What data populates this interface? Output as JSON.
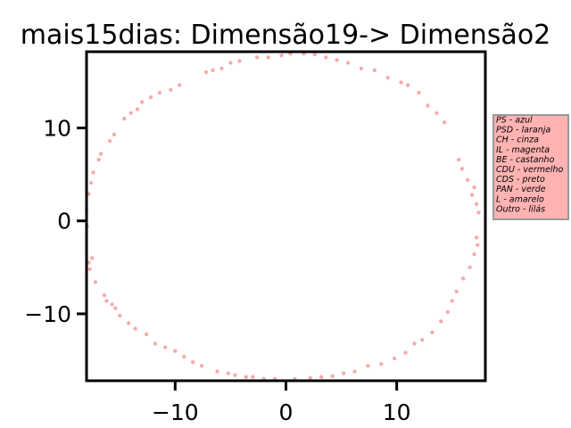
{
  "chart_data": {
    "type": "scatter",
    "title": "mais15dias: Dimensão19-> Dimensão2",
    "xlabel": "",
    "ylabel": "",
    "xlim": [
      -18,
      18
    ],
    "ylim": [
      -17.2,
      18.2
    ],
    "x_ticks": [
      -10,
      0,
      10
    ],
    "y_ticks": [
      -10,
      0,
      10
    ],
    "x_tick_labels": [
      "−10",
      "0",
      "10"
    ],
    "y_tick_labels": [
      "−10",
      "0",
      "10"
    ],
    "grid": false,
    "point_color": "#f08080",
    "legend_placement": "right-outside",
    "legend_bg": "#ffb3b3",
    "legend_entries": [
      "PS - azul",
      "PSD - laranja",
      "CH - cinza",
      "IL - magenta",
      "BE - castanho",
      "CDU - vermelho",
      "CDS - preto",
      "PAN - verde",
      "L - amarelo",
      "Outro - lilás"
    ],
    "series": [
      {
        "points": [
          [
            -18,
            1.2
          ],
          [
            -17.95,
            -0.6
          ],
          [
            -17.8,
            2.9
          ],
          [
            -17.8,
            -4.5
          ],
          [
            -17.7,
            -5.2
          ],
          [
            -17.6,
            4.1
          ],
          [
            -17.5,
            -4.0
          ],
          [
            -17.4,
            5.2
          ],
          [
            -17.2,
            -6.6
          ],
          [
            -16.9,
            6.6
          ],
          [
            -16.7,
            7.2
          ],
          [
            -16.4,
            -8.0
          ],
          [
            -16.2,
            -8.6
          ],
          [
            -15.9,
            8.6
          ],
          [
            -15.7,
            -9.0
          ],
          [
            -15.5,
            9.3
          ],
          [
            -15.4,
            -9.4
          ],
          [
            -15.0,
            -10.2
          ],
          [
            -14.6,
            11.0
          ],
          [
            -14.2,
            -11.0
          ],
          [
            -14.0,
            11.6
          ],
          [
            -13.6,
            -11.6
          ],
          [
            -13.4,
            12.0
          ],
          [
            -13.0,
            12.8
          ],
          [
            -12.6,
            -12.2
          ],
          [
            -12.2,
            13.3
          ],
          [
            -11.8,
            -13.2
          ],
          [
            -11.4,
            13.8
          ],
          [
            -10.9,
            -13.6
          ],
          [
            -10.4,
            14.1
          ],
          [
            -10.0,
            -14.0
          ],
          [
            -9.6,
            14.6
          ],
          [
            -9.2,
            -14.6
          ],
          [
            -8.4,
            -15.2
          ],
          [
            -7.6,
            -15.6
          ],
          [
            -7.2,
            16.0
          ],
          [
            -6.6,
            16.2
          ],
          [
            -6.2,
            -16.2
          ],
          [
            -5.8,
            16.4
          ],
          [
            -5.2,
            -16.4
          ],
          [
            -5.0,
            17.0
          ],
          [
            -4.6,
            -16.6
          ],
          [
            -4.2,
            17.2
          ],
          [
            -3.6,
            -16.8
          ],
          [
            -3.0,
            -16.8
          ],
          [
            -2.6,
            17.6
          ],
          [
            -2.0,
            -17.0
          ],
          [
            -1.6,
            17.6
          ],
          [
            -1.0,
            -17.0
          ],
          [
            -0.4,
            17.8
          ],
          [
            0.4,
            18.0
          ],
          [
            0.8,
            -17.0
          ],
          [
            1.6,
            18.0
          ],
          [
            2.2,
            -16.9
          ],
          [
            2.6,
            17.9
          ],
          [
            3.2,
            -16.8
          ],
          [
            3.6,
            17.6
          ],
          [
            4.2,
            -16.7
          ],
          [
            4.6,
            17.3
          ],
          [
            5.2,
            -16.4
          ],
          [
            5.6,
            17.0
          ],
          [
            6.2,
            -16.2
          ],
          [
            6.8,
            16.4
          ],
          [
            7.4,
            -15.6
          ],
          [
            8.0,
            16.2
          ],
          [
            8.6,
            -15.4
          ],
          [
            9.2,
            15.4
          ],
          [
            9.8,
            -14.8
          ],
          [
            10.4,
            14.9
          ],
          [
            10.8,
            -14.2
          ],
          [
            11.0,
            14.6
          ],
          [
            11.6,
            -13.2
          ],
          [
            12.0,
            13.8
          ],
          [
            12.3,
            -12.8
          ],
          [
            12.8,
            12.4
          ],
          [
            13.2,
            -12.0
          ],
          [
            13.6,
            11.6
          ],
          [
            14.0,
            -10.8
          ],
          [
            14.3,
            10.6
          ],
          [
            14.6,
            -9.8
          ],
          [
            15.0,
            -8.6
          ],
          [
            15.4,
            -7.6
          ],
          [
            15.6,
            6.6
          ],
          [
            15.9,
            5.6
          ],
          [
            16.0,
            -6.2
          ],
          [
            16.4,
            4.4
          ],
          [
            16.6,
            -5.0
          ],
          [
            16.8,
            2.8
          ],
          [
            17.0,
            -3.6
          ],
          [
            17.2,
            1.8
          ],
          [
            17.3,
            -2.6
          ],
          [
            17.4,
            0.9
          ],
          [
            17.2,
            -1.8
          ],
          [
            17.0,
            3.6
          ]
        ]
      }
    ]
  }
}
